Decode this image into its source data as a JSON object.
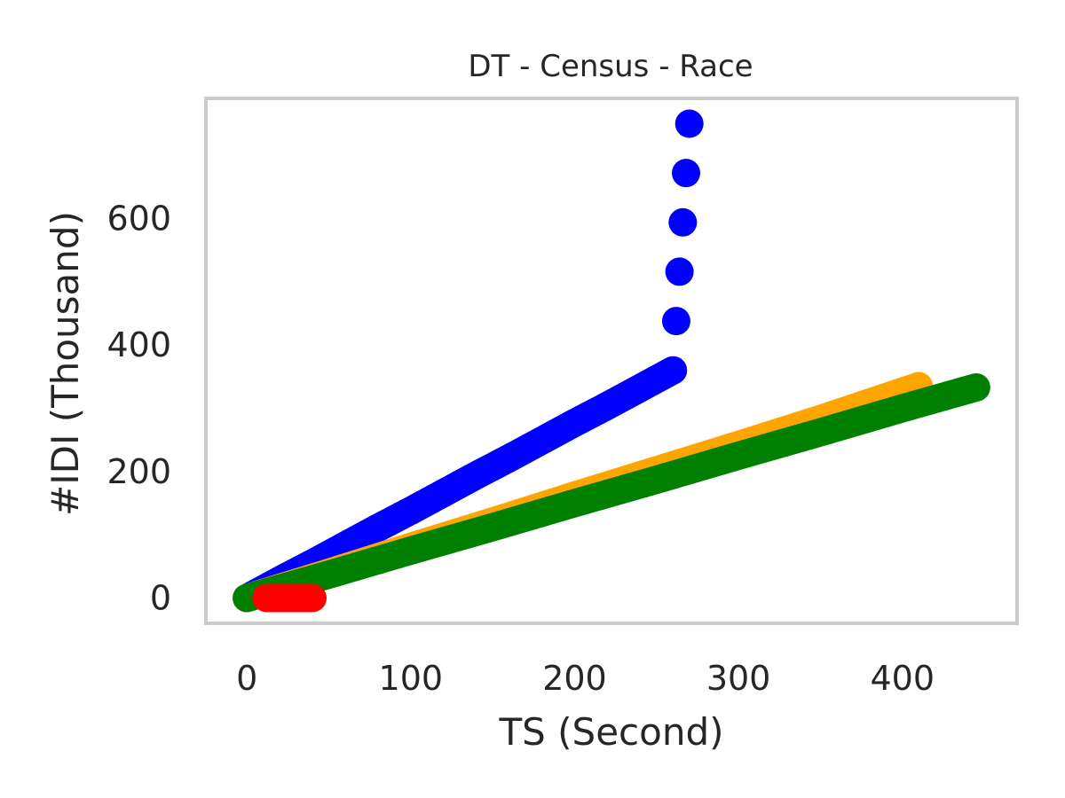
{
  "chart_data": {
    "type": "scatter",
    "title": "DT - Census - Race",
    "xlabel": "TS (Second)",
    "ylabel": "#IDI (Thousand)",
    "xlim": [
      -25,
      470
    ],
    "ylim": [
      -40,
      790
    ],
    "xticks": [
      "0",
      "100",
      "200",
      "300",
      "400"
    ],
    "yticks": [
      "0",
      "200",
      "400",
      "600"
    ],
    "grid": false,
    "series": [
      {
        "color": "#0000ff",
        "x": [
          0,
          20,
          40,
          60,
          80,
          100,
          120,
          140,
          160,
          180,
          200,
          220,
          240,
          260,
          270
        ],
        "y": [
          0,
          28,
          55,
          83,
          111,
          138,
          166,
          194,
          221,
          249,
          277,
          304,
          332,
          360,
          750
        ]
      },
      {
        "color": "#ffa500",
        "x": [
          0,
          50,
          100,
          150,
          200,
          250,
          300,
          350,
          410
        ],
        "y": [
          0,
          40,
          81,
          121,
          162,
          202,
          242,
          283,
          335
        ]
      },
      {
        "color": "#008000",
        "x": [
          0,
          50,
          100,
          150,
          200,
          250,
          300,
          350,
          400,
          445
        ],
        "y": [
          0,
          37,
          75,
          112,
          150,
          187,
          225,
          262,
          300,
          333
        ]
      },
      {
        "color": "#ff0000",
        "x": [
          12,
          20,
          28,
          36,
          40
        ],
        "y": [
          0,
          0,
          0,
          0,
          0
        ]
      }
    ]
  }
}
